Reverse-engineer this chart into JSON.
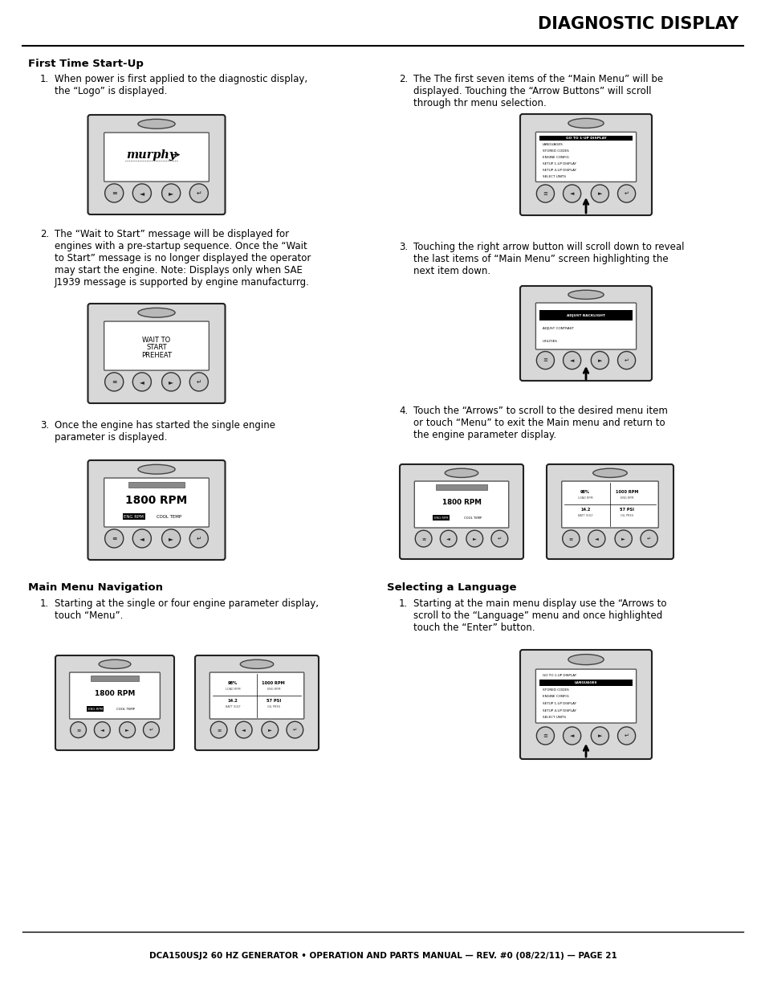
{
  "title": "DIAGNOSTIC DISPLAY",
  "footer": "DCA150USJ2 60 HZ GENERATOR • OPERATION AND PARTS MANUAL — REV. #0 (08/22/11) — PAGE 21",
  "left_col": {
    "section1_title": "First Time Start-Up",
    "item1": "When power is first applied to the diagnostic display,\nthe “Logo” is displayed.",
    "item2": "The “Wait to Start” message will be displayed for\nengines with a pre-startup sequence. Once the “Wait\nto Start” message is no longer displayed the operator\nmay start the engine. Note: Displays only when SAE\nJ1939 message is supported by engine manufacturrg.",
    "item3": "Once the engine has started the single engine\nparameter is displayed.",
    "section2_title": "Main Menu Navigation",
    "item4": "Starting at the single or four engine parameter display,\ntouch “Menu”."
  },
  "right_col": {
    "item1": "The The first seven items of the “Main Menu” will be\ndisplayed. Touching the “Arrow Buttons” will scroll\nthrough thr menu selection.",
    "item2": "Touching the right arrow button will scroll down to reveal\nthe last items of “Main Menu” screen highlighting the\nnext item down.",
    "item3": "Touch the “Arrows” to scroll to the desired menu item\nor touch “Menu” to exit the Main menu and return to\nthe engine parameter display.",
    "section2_title": "Selecting a Language",
    "item4": "Starting at the main menu display use the “Arrows to\nscroll to the “Language” menu and once highlighted\ntouch the “Enter” button."
  },
  "bg_color": "#ffffff",
  "text_color": "#000000"
}
